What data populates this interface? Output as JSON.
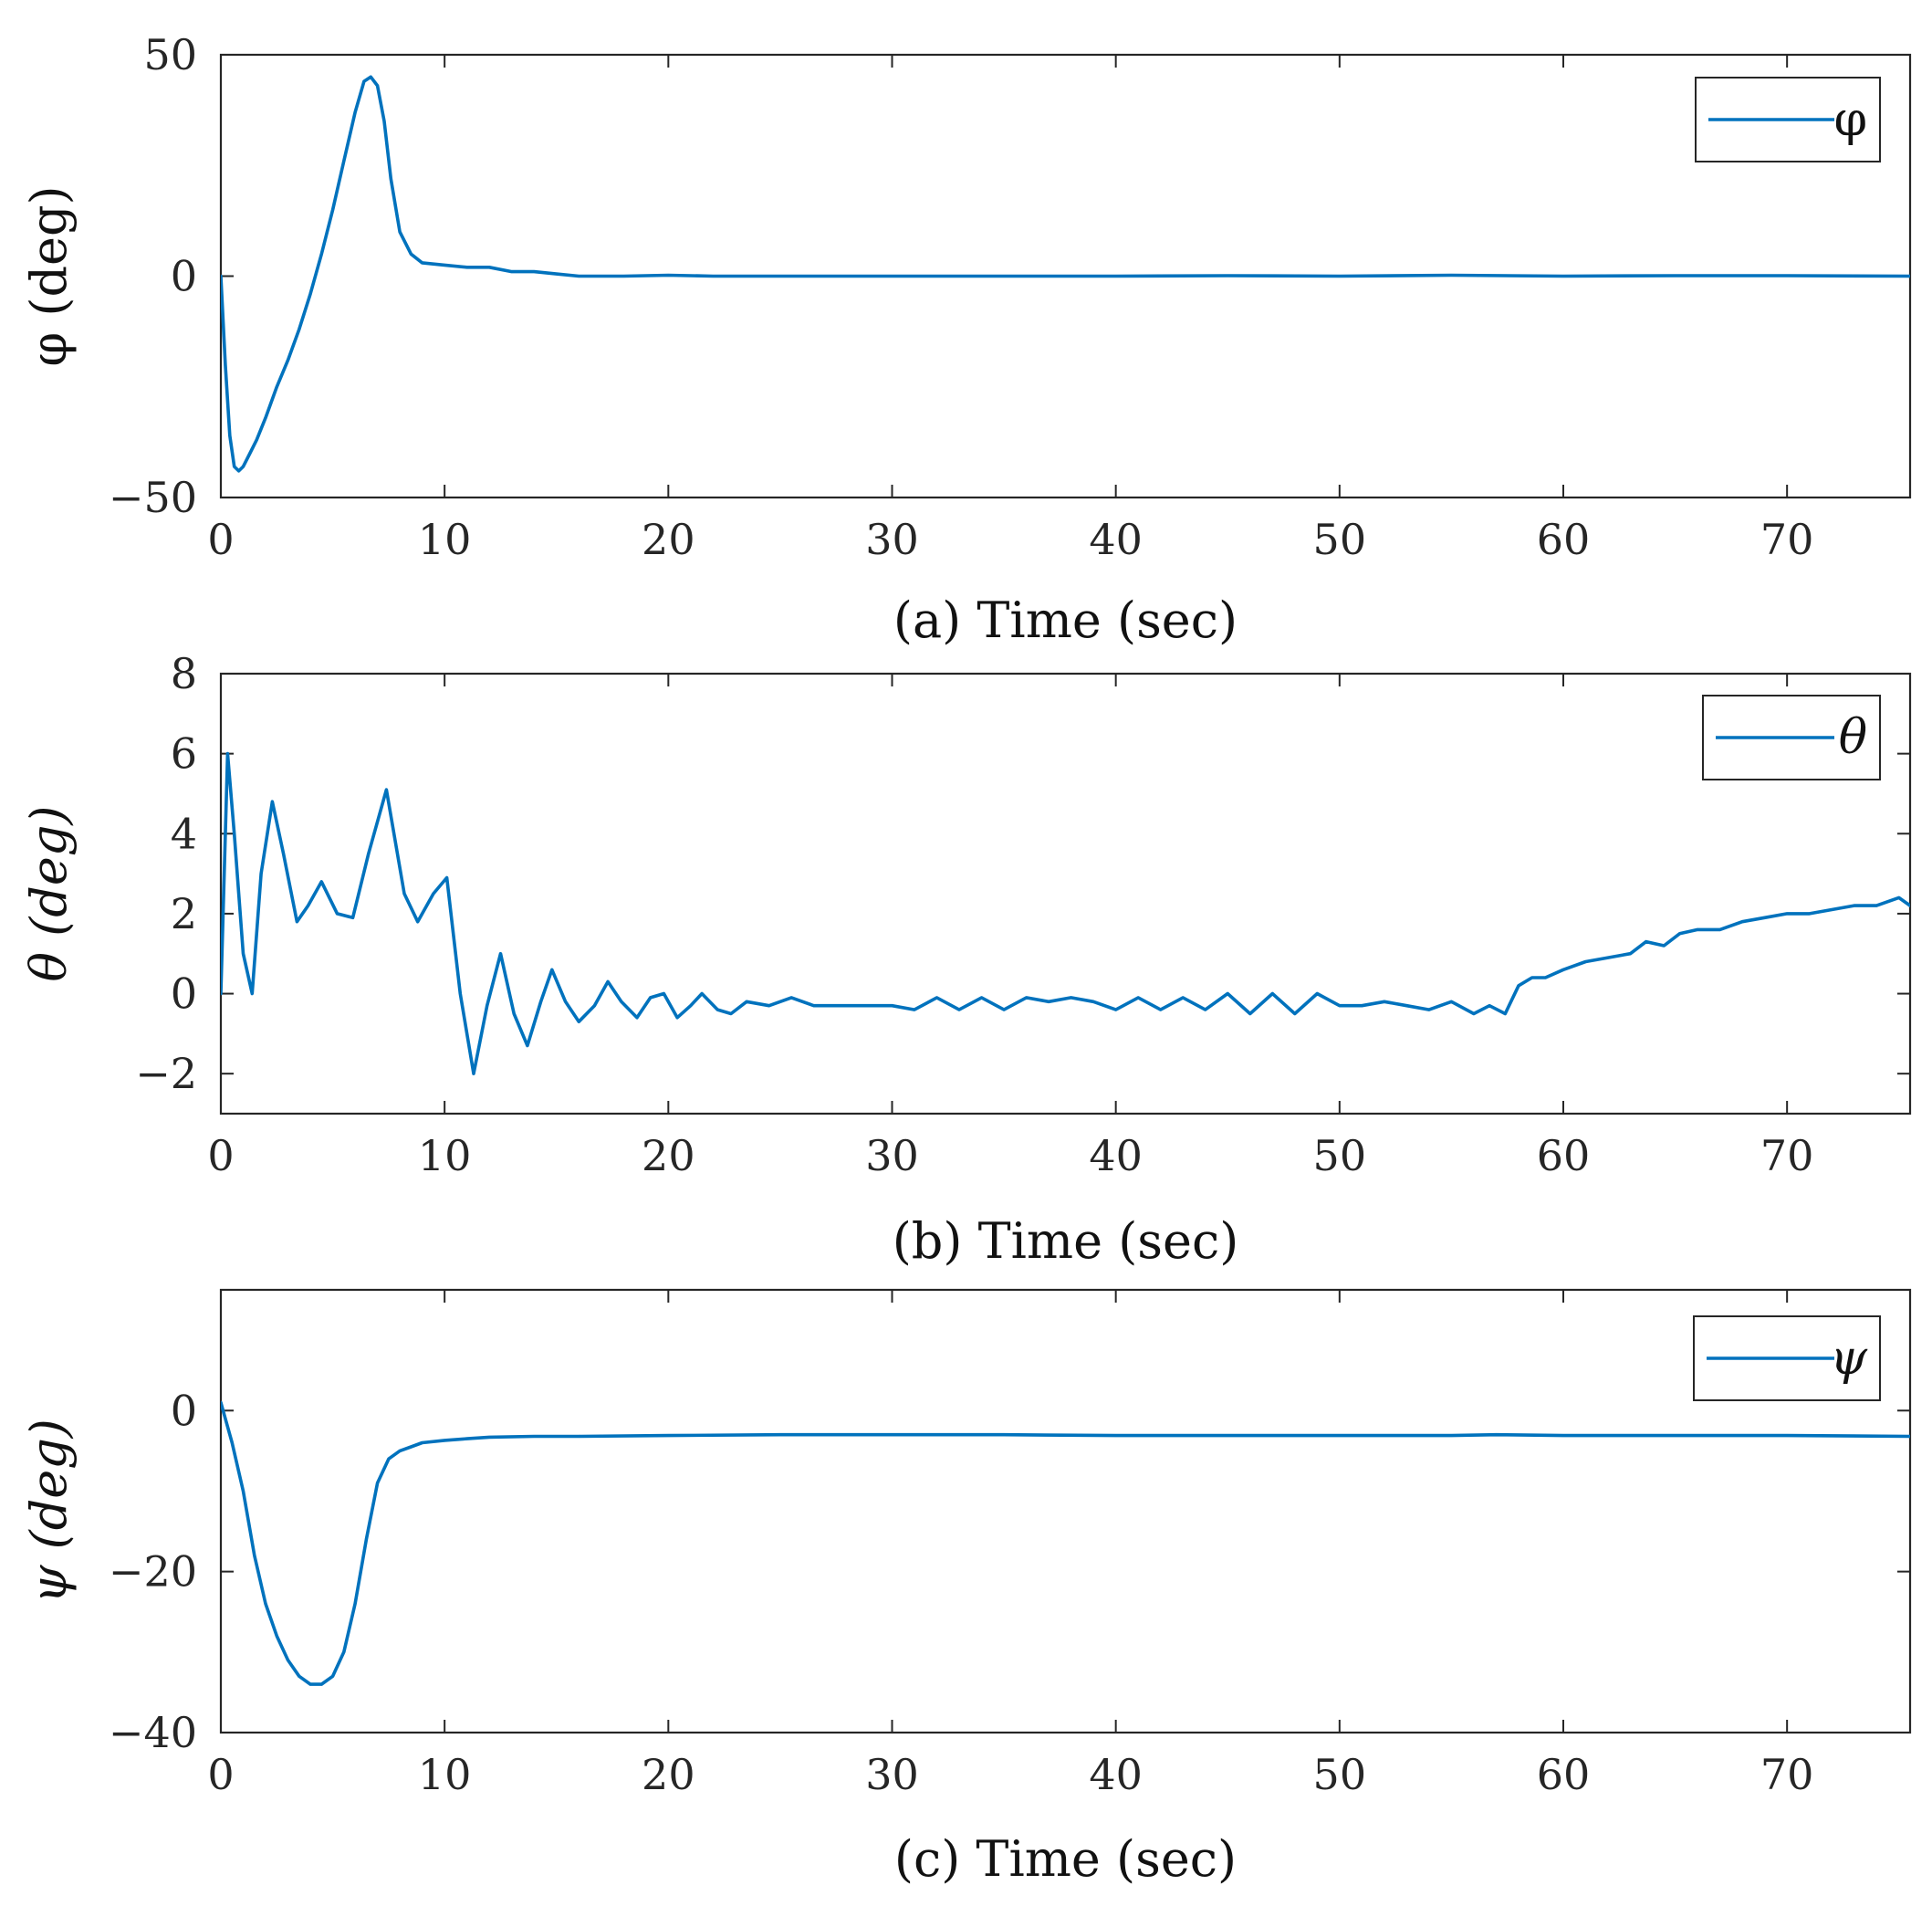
{
  "chart_data": [
    {
      "type": "line",
      "panel": "a",
      "xlabel": "(a) Time (sec)",
      "ylabel": "φ (deg)",
      "ylabel_italic": false,
      "legend": "φ",
      "legend_italic": false,
      "legend_position": "top-right",
      "xlim": [
        0,
        75.5
      ],
      "ylim": [
        -50,
        50
      ],
      "xticks": [
        0,
        10,
        20,
        30,
        40,
        50,
        60,
        70
      ],
      "xtick_labels": [
        "0",
        "10",
        "20",
        "30",
        "40",
        "50",
        "60",
        "70"
      ],
      "yticks": [
        -50,
        0,
        50
      ],
      "ytick_labels": [
        "−50",
        "0",
        "50"
      ],
      "color": "#0072BD",
      "series": [
        {
          "name": "φ",
          "x": [
            0,
            0.2,
            0.4,
            0.6,
            0.8,
            1.0,
            1.3,
            1.6,
            2.0,
            2.5,
            3.0,
            3.5,
            4.0,
            4.5,
            5.0,
            5.5,
            6.0,
            6.4,
            6.7,
            7.0,
            7.3,
            7.6,
            8.0,
            8.5,
            9.0,
            10,
            11,
            12,
            13,
            14,
            15,
            16,
            18,
            20,
            22,
            25,
            30,
            35,
            40,
            45,
            50,
            55,
            60,
            65,
            70,
            75.5
          ],
          "y": [
            0,
            -20,
            -36,
            -43,
            -44,
            -43,
            -40,
            -37,
            -32,
            -25,
            -19,
            -12,
            -4,
            5,
            15,
            26,
            37,
            44,
            45,
            43,
            35,
            22,
            10,
            5,
            3,
            2.5,
            2,
            2,
            1,
            1,
            0.5,
            0,
            0,
            0.2,
            0,
            0,
            0,
            0,
            0,
            0.1,
            0,
            0.2,
            0,
            0.1,
            0.1,
            0
          ]
        }
      ]
    },
    {
      "type": "line",
      "panel": "b",
      "xlabel": "(b) Time (sec)",
      "ylabel": "θ (deg)",
      "ylabel_italic": true,
      "legend": "θ",
      "legend_italic": true,
      "legend_position": "top-right",
      "xlim": [
        0,
        75.5
      ],
      "ylim": [
        -3,
        8
      ],
      "xticks": [
        0,
        10,
        20,
        30,
        40,
        50,
        60,
        70
      ],
      "xtick_labels": [
        "0",
        "10",
        "20",
        "30",
        "40",
        "50",
        "60",
        "70"
      ],
      "yticks": [
        -2,
        0,
        2,
        4,
        6,
        8
      ],
      "ytick_labels": [
        "−2",
        "0",
        "2",
        "4",
        "6",
        "8"
      ],
      "color": "#0072BD",
      "series": [
        {
          "name": "θ",
          "x": [
            0,
            0.3,
            0.6,
            1.0,
            1.4,
            1.8,
            2.3,
            2.8,
            3.4,
            3.9,
            4.5,
            5.2,
            5.9,
            6.6,
            7.4,
            8.2,
            8.8,
            9.5,
            10.1,
            10.7,
            11.3,
            11.9,
            12.5,
            13.1,
            13.7,
            14.3,
            14.8,
            15.4,
            16.0,
            16.7,
            17.3,
            17.9,
            18.6,
            19.2,
            19.8,
            20.4,
            21.0,
            21.5,
            22.2,
            22.8,
            23.5,
            24.5,
            25.5,
            26.5,
            28,
            30,
            31,
            32,
            33,
            34,
            35,
            36,
            37,
            38,
            39,
            40,
            41,
            42,
            43,
            44,
            45,
            46,
            47,
            48,
            49,
            50,
            51,
            52,
            53,
            54,
            55,
            56,
            56.7,
            57.4,
            58.0,
            58.6,
            59.2,
            60.0,
            61.0,
            62.0,
            63.0,
            63.7,
            64.5,
            65.2,
            66.0,
            67.0,
            68.0,
            69.0,
            70.0,
            71.0,
            72.0,
            73.0,
            74.0,
            75.0,
            75.5
          ],
          "y": [
            0,
            6,
            4,
            1,
            0,
            3,
            4.8,
            3.5,
            1.8,
            2.2,
            2.8,
            2.0,
            1.9,
            3.5,
            5.1,
            2.5,
            1.8,
            2.5,
            2.9,
            0,
            -2,
            -0.3,
            1.0,
            -0.5,
            -1.3,
            -0.2,
            0.6,
            -0.2,
            -0.7,
            -0.3,
            0.3,
            -0.2,
            -0.6,
            -0.1,
            0,
            -0.6,
            -0.3,
            0,
            -0.4,
            -0.5,
            -0.2,
            -0.3,
            -0.1,
            -0.3,
            -0.3,
            -0.3,
            -0.4,
            -0.1,
            -0.4,
            -0.1,
            -0.4,
            -0.1,
            -0.2,
            -0.1,
            -0.2,
            -0.4,
            -0.1,
            -0.4,
            -0.1,
            -0.4,
            0,
            -0.5,
            0,
            -0.5,
            0,
            -0.3,
            -0.3,
            -0.2,
            -0.3,
            -0.4,
            -0.2,
            -0.5,
            -0.3,
            -0.5,
            0.2,
            0.4,
            0.4,
            0.6,
            0.8,
            0.9,
            1.0,
            1.3,
            1.2,
            1.5,
            1.6,
            1.6,
            1.8,
            1.9,
            2.0,
            2.0,
            2.1,
            2.2,
            2.2,
            2.4,
            2.2
          ]
        }
      ]
    },
    {
      "type": "line",
      "panel": "c",
      "xlabel": "(c) Time (sec)",
      "ylabel": "ψ (deg)",
      "ylabel_italic": true,
      "legend": "ψ",
      "legend_italic": true,
      "legend_position": "top-right",
      "xlim": [
        0,
        75.5
      ],
      "ylim": [
        -40,
        15
      ],
      "xticks": [
        0,
        10,
        20,
        30,
        40,
        50,
        60,
        70
      ],
      "xtick_labels": [
        "0",
        "10",
        "20",
        "30",
        "40",
        "50",
        "60",
        "70"
      ],
      "yticks": [
        -40,
        -20,
        0
      ],
      "ytick_labels": [
        "−40",
        "−20",
        "0"
      ],
      "color": "#0072BD",
      "series": [
        {
          "name": "ψ",
          "x": [
            0,
            0.5,
            1.0,
            1.5,
            2.0,
            2.5,
            3.0,
            3.5,
            4.0,
            4.5,
            5.0,
            5.5,
            6.0,
            6.5,
            7.0,
            7.5,
            8.0,
            8.5,
            9.0,
            10,
            11,
            12,
            14,
            16,
            20,
            25,
            30,
            35,
            40,
            45,
            50,
            55,
            57,
            60,
            65,
            70,
            75.5
          ],
          "y": [
            1,
            -4,
            -10,
            -18,
            -24,
            -28,
            -31,
            -33,
            -34,
            -34,
            -33,
            -30,
            -24,
            -16,
            -9,
            -6,
            -5,
            -4.5,
            -4,
            -3.7,
            -3.5,
            -3.3,
            -3.2,
            -3.2,
            -3.1,
            -3.0,
            -3.0,
            -3.0,
            -3.1,
            -3.1,
            -3.1,
            -3.1,
            -3.0,
            -3.1,
            -3.1,
            -3.1,
            -3.2
          ]
        }
      ]
    }
  ]
}
